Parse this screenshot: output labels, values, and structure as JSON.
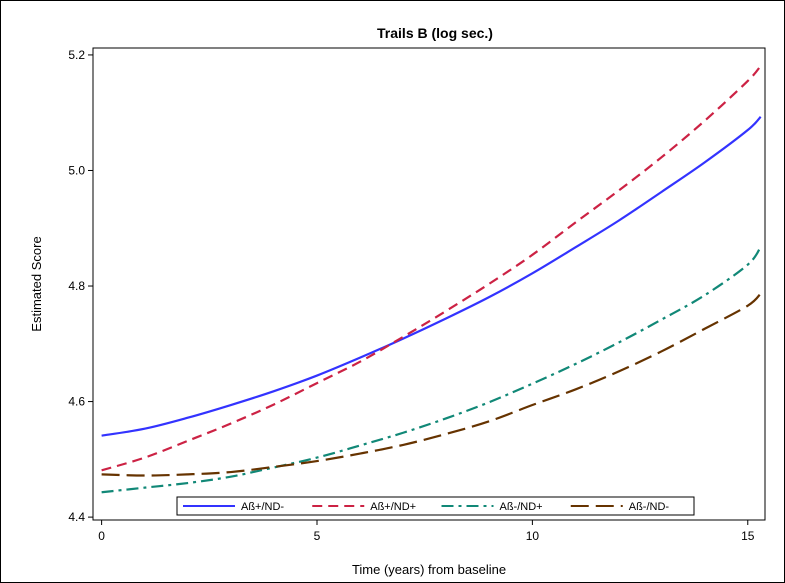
{
  "chart_data": {
    "type": "line",
    "title": "Trails B (log sec.)",
    "xlabel": "Time (years) from baseline",
    "ylabel": "Estimated Score",
    "xlim": [
      -0.2,
      15.4
    ],
    "ylim": [
      4.395,
      5.212
    ],
    "xticks": [
      0,
      5,
      10,
      15
    ],
    "yticks": [
      4.4,
      4.6,
      4.8,
      5.0,
      5.2
    ],
    "xtick_labels": [
      "0",
      "5",
      "10",
      "15"
    ],
    "ytick_labels": [
      "4.4",
      "4.6",
      "4.8",
      "5.0",
      "5.2"
    ],
    "legend_position": "bottom-inside",
    "x": [
      0,
      1,
      2,
      3,
      4,
      5,
      6,
      7,
      8,
      9,
      10,
      11,
      12,
      13,
      14,
      15,
      15.3
    ],
    "series": [
      {
        "name": "Aß+/ND-",
        "color": "#3333ff",
        "dash": "solid",
        "values": [
          4.541,
          4.553,
          4.572,
          4.594,
          4.618,
          4.645,
          4.676,
          4.709,
          4.744,
          4.781,
          4.822,
          4.867,
          4.913,
          4.963,
          5.014,
          5.07,
          5.093
        ]
      },
      {
        "name": "Aß+/ND+",
        "color": "#cc2244",
        "dash": "dash",
        "values": [
          4.481,
          4.503,
          4.532,
          4.562,
          4.595,
          4.632,
          4.669,
          4.712,
          4.757,
          4.804,
          4.854,
          4.91,
          4.965,
          5.023,
          5.086,
          5.155,
          5.181
        ]
      },
      {
        "name": "Aß-/ND+",
        "color": "#118877",
        "dash": "dashdot",
        "values": [
          4.443,
          4.451,
          4.459,
          4.47,
          4.486,
          4.503,
          4.524,
          4.546,
          4.571,
          4.599,
          4.631,
          4.665,
          4.702,
          4.742,
          4.784,
          4.837,
          4.868
        ]
      },
      {
        "name": "Aß-/ND-",
        "color": "#663300",
        "dash": "longdash",
        "values": [
          4.474,
          4.472,
          4.474,
          4.478,
          4.487,
          4.497,
          4.51,
          4.525,
          4.544,
          4.566,
          4.594,
          4.621,
          4.652,
          4.687,
          4.726,
          4.766,
          4.787
        ]
      }
    ]
  }
}
